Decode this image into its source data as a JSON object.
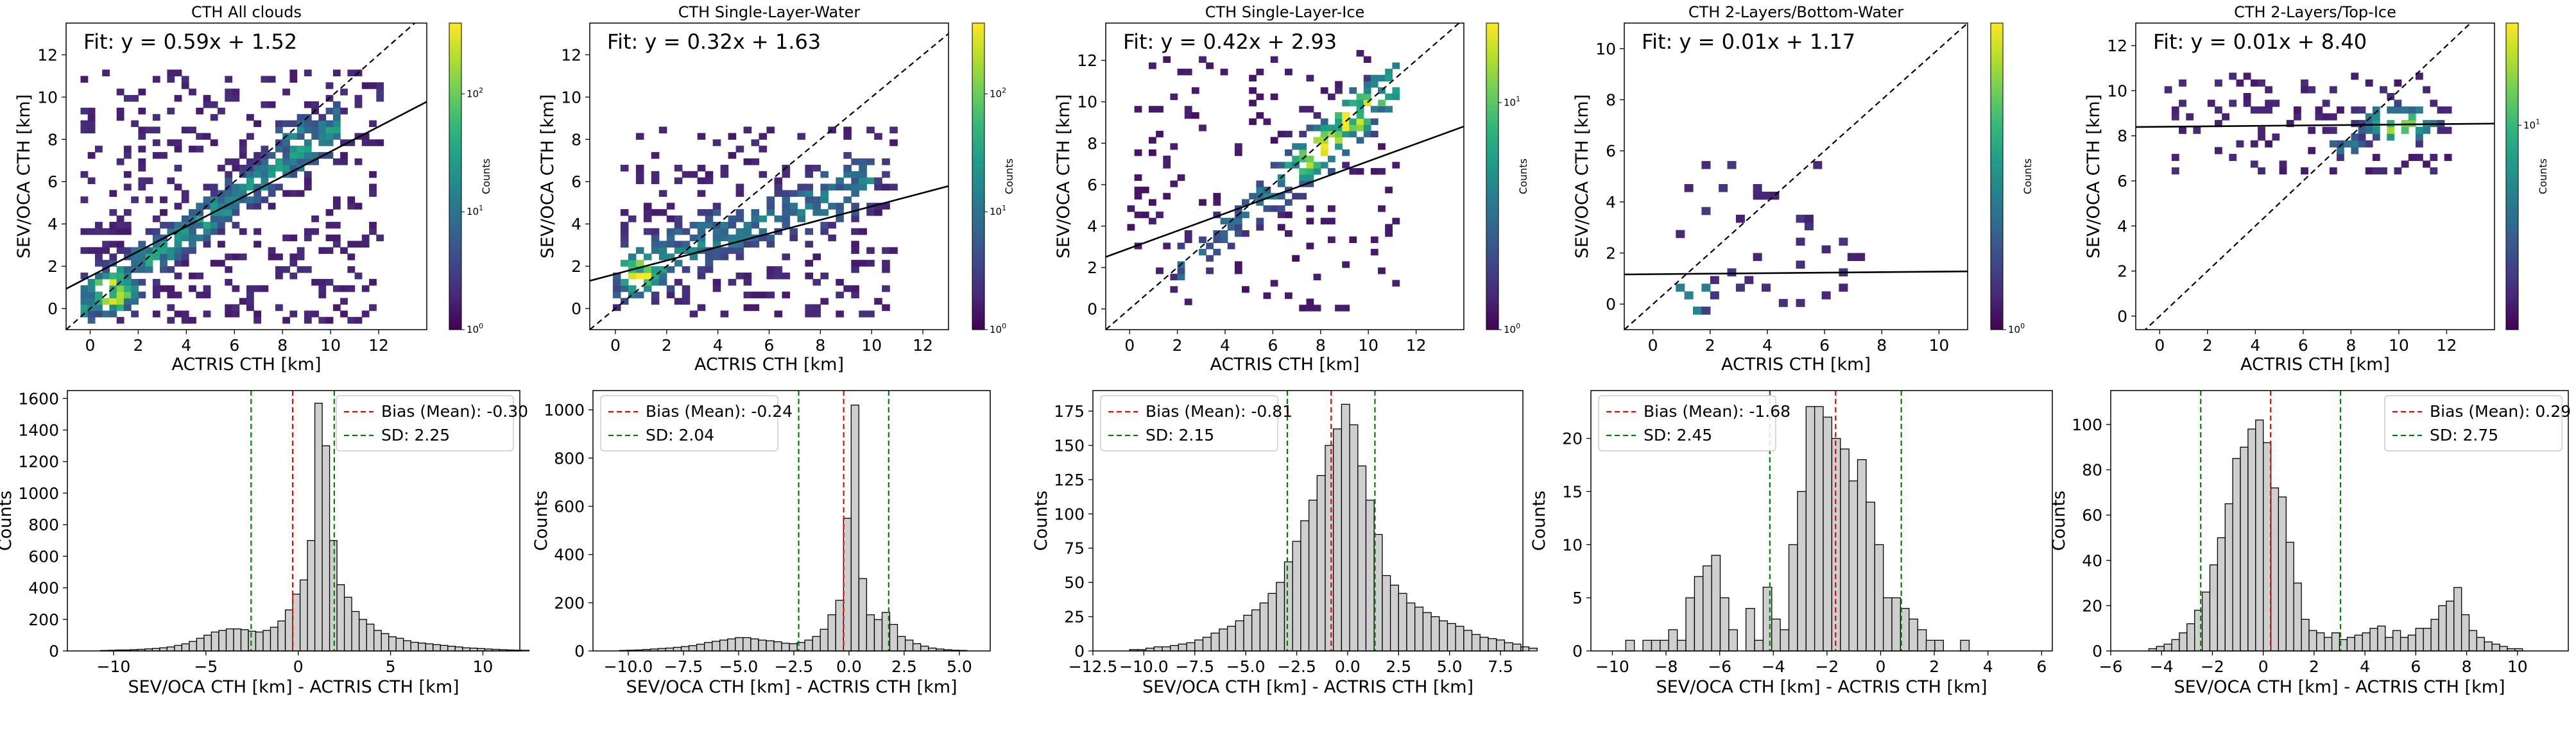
{
  "chart_data": [
    {
      "type": "heatmap",
      "title": "CTH All clouds",
      "xlabel": "ACTRIS CTH [km]",
      "ylabel": "SEV/OCA CTH [km]",
      "xlim": [
        -1,
        14
      ],
      "ylim": [
        -1,
        13.5
      ],
      "xticks": [
        0,
        2,
        4,
        6,
        8,
        10,
        12
      ],
      "yticks": [
        0,
        2,
        4,
        6,
        8,
        10,
        12
      ],
      "fit_text": "Fit: y = 0.59x + 1.52",
      "fit": {
        "slope": 0.59,
        "intercept": 1.52
      },
      "colorbar": {
        "label": "Counts",
        "scale": "log",
        "ticks": [
          "10^0",
          "10^1",
          "10^2"
        ],
        "max_exp": 2.6
      },
      "cluster_fn": "all"
    },
    {
      "type": "heatmap",
      "title": "CTH Single-Layer-Water",
      "xlabel": "ACTRIS CTH [km]",
      "ylabel": "SEV/OCA CTH [km]",
      "xlim": [
        -1,
        13
      ],
      "ylim": [
        -1,
        13.5
      ],
      "xticks": [
        0,
        2,
        4,
        6,
        8,
        10,
        12
      ],
      "yticks": [
        0,
        2,
        4,
        6,
        8,
        10,
        12
      ],
      "fit_text": "Fit: y = 0.32x + 1.63",
      "fit": {
        "slope": 0.32,
        "intercept": 1.63
      },
      "colorbar": {
        "label": "Counts",
        "scale": "log",
        "ticks": [
          "10^0",
          "10^1",
          "10^2"
        ],
        "max_exp": 2.6
      },
      "cluster_fn": "water"
    },
    {
      "type": "heatmap",
      "title": "CTH Single-Layer-Ice",
      "xlabel": "ACTRIS CTH [km]",
      "ylabel": "SEV/OCA CTH [km]",
      "xlim": [
        -1,
        14
      ],
      "ylim": [
        -1,
        13.8
      ],
      "xticks": [
        0,
        2,
        4,
        6,
        8,
        10,
        12
      ],
      "yticks": [
        0,
        2,
        4,
        6,
        8,
        10,
        12
      ],
      "fit_text": "Fit: y = 0.42x + 2.93",
      "fit": {
        "slope": 0.42,
        "intercept": 2.93
      },
      "colorbar": {
        "label": "Counts",
        "scale": "log",
        "ticks": [
          "10^0",
          "10^1"
        ],
        "max_exp": 1.35
      },
      "cluster_fn": "ice"
    },
    {
      "type": "heatmap",
      "title": "CTH 2-Layers/Bottom-Water",
      "xlabel": "ACTRIS CTH [km]",
      "ylabel": "SEV/OCA CTH [km]",
      "xlim": [
        -1,
        11
      ],
      "ylim": [
        -1,
        11
      ],
      "xticks": [
        0,
        2,
        4,
        6,
        8,
        10
      ],
      "yticks": [
        0,
        2,
        4,
        6,
        8,
        10
      ],
      "fit_text": "Fit: y = 0.01x + 1.17",
      "fit": {
        "slope": 0.01,
        "intercept": 1.17
      },
      "colorbar": {
        "label": "Counts",
        "scale": "log",
        "ticks": [
          "10^0"
        ],
        "max_exp": 0.45
      },
      "cluster_fn": "bottom"
    },
    {
      "type": "heatmap",
      "title": "CTH 2-Layers/Top-Ice",
      "xlabel": "ACTRIS CTH [km]",
      "ylabel": "SEV/OCA CTH [km]",
      "xlim": [
        -1,
        14
      ],
      "ylim": [
        -0.6,
        13
      ],
      "xticks": [
        0,
        2,
        4,
        6,
        8,
        10,
        12
      ],
      "yticks": [
        0,
        2,
        4,
        6,
        8,
        10,
        12
      ],
      "fit_text": "Fit: y = 0.01x + 8.40",
      "fit": {
        "slope": 0.01,
        "intercept": 8.4
      },
      "colorbar": {
        "label": "Counts",
        "scale": "log",
        "ticks": [
          "10^1"
        ],
        "max_exp": 1.5
      },
      "cluster_fn": "top"
    },
    {
      "type": "bar",
      "subtype": "histogram",
      "xlabel": "SEV/OCA CTH [km] - ACTRIS CTH [km]",
      "ylabel": "Counts",
      "xlim": [
        -12.5,
        12
      ],
      "ylim": [
        0,
        1650
      ],
      "xticks": [
        -10,
        -5,
        0,
        5,
        10
      ],
      "xtick_labels": [
        "−10",
        "−5",
        "0",
        "5",
        "10"
      ],
      "yticks": [
        0,
        200,
        400,
        600,
        800,
        1000,
        1200,
        1400,
        1600
      ],
      "bias": -0.3,
      "sd": 2.25,
      "legend": [
        "Bias (Mean): -0.30",
        "SD: 2.25"
      ],
      "legend_loc": "upper right",
      "bins": {
        "start": -10.7,
        "width": 0.4,
        "counts": [
          3,
          4,
          6,
          6,
          8,
          10,
          13,
          16,
          20,
          25,
          35,
          45,
          60,
          80,
          100,
          120,
          130,
          140,
          140,
          135,
          125,
          120,
          130,
          150,
          190,
          260,
          360,
          450,
          700,
          1570,
          1300,
          700,
          420,
          340,
          250,
          200,
          170,
          130,
          110,
          90,
          80,
          65,
          55,
          50,
          45,
          40,
          35,
          30,
          25,
          20,
          18,
          15,
          12,
          10,
          8,
          6,
          5,
          4
        ]
      }
    },
    {
      "type": "bar",
      "subtype": "histogram",
      "xlabel": "SEV/OCA CTH [km] - ACTRIS CTH [km]",
      "ylabel": "Counts",
      "xlim": [
        -11.6,
        6.4
      ],
      "ylim": [
        0,
        1080
      ],
      "xticks": [
        -10,
        -7.5,
        -5,
        -2.5,
        0,
        2.5,
        5
      ],
      "xtick_labels": [
        "−10.0",
        "−7.5",
        "−5.0",
        "−2.5",
        "0.0",
        "2.5",
        "5.0"
      ],
      "yticks": [
        0,
        200,
        400,
        600,
        800,
        1000
      ],
      "bias": -0.24,
      "sd": 2.04,
      "legend": [
        "Bias (Mean): -0.24",
        "SD: 2.04"
      ],
      "legend_loc": "upper left",
      "bins": {
        "start": -10.4,
        "width": 0.35,
        "counts": [
          2,
          3,
          4,
          6,
          8,
          10,
          12,
          15,
          18,
          22,
          28,
          35,
          40,
          45,
          50,
          55,
          55,
          50,
          45,
          42,
          38,
          32,
          30,
          35,
          45,
          60,
          90,
          150,
          210,
          550,
          1020,
          300,
          150,
          130,
          160,
          110,
          60,
          45,
          30,
          20,
          12,
          8,
          5,
          3,
          2
        ]
      }
    },
    {
      "type": "bar",
      "subtype": "histogram",
      "xlabel": "SEV/OCA CTH [km] - ACTRIS CTH [km]",
      "ylabel": "Counts",
      "xlim": [
        -12.5,
        8.6
      ],
      "ylim": [
        0,
        190
      ],
      "xticks": [
        -12.5,
        -10,
        -7.5,
        -5,
        -2.5,
        0,
        2.5,
        5,
        7.5
      ],
      "xtick_labels": [
        "−12.5",
        "−10.0",
        "−7.5",
        "−5.0",
        "−2.5",
        "0.0",
        "2.5",
        "5.0",
        "7.5"
      ],
      "yticks": [
        0,
        25,
        50,
        75,
        100,
        125,
        150,
        175
      ],
      "bias": -0.81,
      "sd": 2.15,
      "legend": [
        "Bias (Mean): -0.81",
        "SD: 2.15"
      ],
      "legend_loc": "upper left",
      "bins": {
        "start": -10.7,
        "width": 0.4,
        "counts": [
          1,
          1,
          2,
          3,
          3,
          4,
          5,
          6,
          8,
          10,
          13,
          16,
          18,
          22,
          26,
          30,
          35,
          42,
          50,
          65,
          80,
          95,
          110,
          128,
          150,
          162,
          180,
          165,
          135,
          110,
          85,
          55,
          48,
          42,
          35,
          32,
          28,
          25,
          22,
          20,
          18,
          15,
          12,
          10,
          9,
          8,
          6,
          5,
          3,
          2
        ]
      }
    },
    {
      "type": "bar",
      "subtype": "histogram",
      "xlabel": "SEV/OCA CTH [km] - ACTRIS CTH [km]",
      "ylabel": "Counts",
      "xlim": [
        -10.8,
        6.4
      ],
      "ylim": [
        0,
        24.5
      ],
      "xticks": [
        -10,
        -8,
        -6,
        -4,
        -2,
        0,
        2,
        4,
        6
      ],
      "xtick_labels": [
        "−10",
        "−8",
        "−6",
        "−4",
        "−2",
        "0",
        "2",
        "4",
        "6"
      ],
      "yticks": [
        0,
        5,
        10,
        15,
        20
      ],
      "bias": -1.68,
      "sd": 2.45,
      "legend": [
        "Bias (Mean): -1.68",
        "SD: 2.45"
      ],
      "legend_loc": "upper left",
      "bins": {
        "start": -9.5,
        "width": 0.32,
        "counts": [
          1,
          0,
          1,
          1,
          1,
          2,
          1,
          5,
          7,
          8,
          9,
          5,
          2,
          0,
          4,
          1,
          6,
          3,
          2,
          10,
          15,
          23,
          23,
          22,
          20,
          19,
          16,
          18,
          14,
          10,
          5,
          5,
          4,
          3,
          2,
          1,
          1,
          0,
          0,
          1,
          0,
          0
        ]
      }
    },
    {
      "type": "bar",
      "subtype": "histogram",
      "xlabel": "SEV/OCA CTH [km] - ACTRIS CTH [km]",
      "ylabel": "Counts",
      "xlim": [
        -6,
        12
      ],
      "ylim": [
        0,
        115
      ],
      "xticks": [
        -6,
        -4,
        -2,
        0,
        2,
        4,
        6,
        8,
        10
      ],
      "xtick_labels": [
        "−6",
        "−4",
        "−2",
        "0",
        "2",
        "4",
        "6",
        "8",
        "10"
      ],
      "yticks": [
        0,
        20,
        40,
        60,
        80,
        100
      ],
      "bias": 0.29,
      "sd": 2.75,
      "legend": [
        "Bias (Mean): 0.29",
        "SD: 2.75"
      ],
      "legend_loc": "upper right",
      "bins": {
        "start": -4.5,
        "width": 0.3,
        "counts": [
          1,
          2,
          3,
          5,
          8,
          12,
          18,
          26,
          38,
          50,
          65,
          85,
          90,
          98,
          102,
          92,
          72,
          68,
          48,
          30,
          14,
          9,
          8,
          6,
          8,
          5,
          6,
          7,
          8,
          10,
          11,
          6,
          9,
          6,
          7,
          10,
          10,
          14,
          20,
          22,
          28,
          16,
          9,
          6,
          4,
          3,
          2,
          1,
          1
        ]
      }
    }
  ],
  "styles": {
    "hist_fill": "#cfcfcf",
    "bias_color": "#ff0000",
    "sd_color": "#008000",
    "fit_color": "#000000",
    "colormap": "viridis"
  }
}
